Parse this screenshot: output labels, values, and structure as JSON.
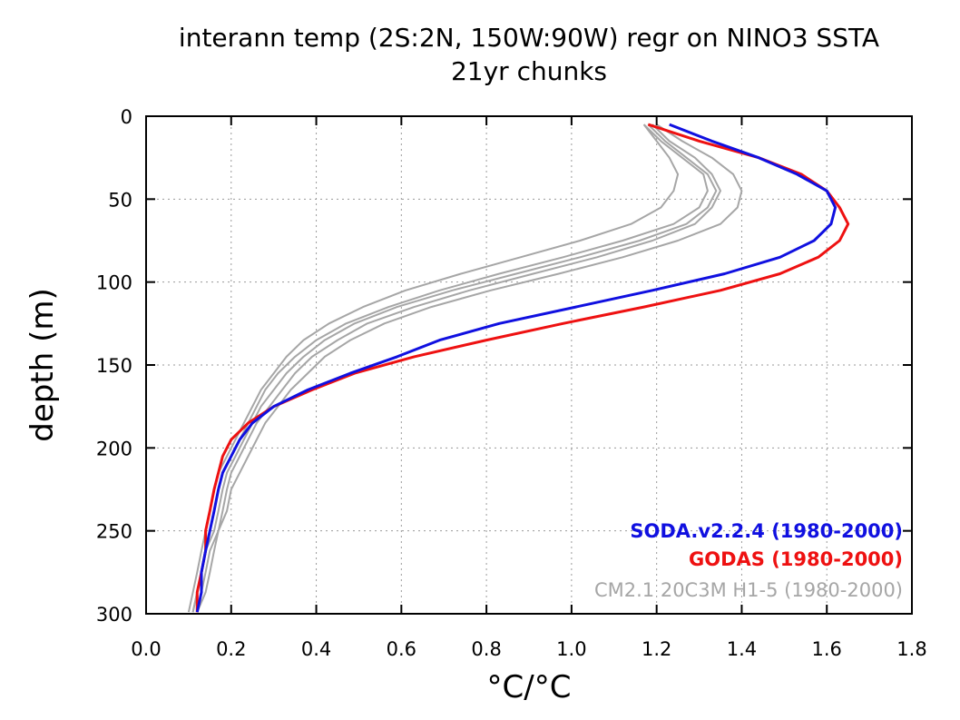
{
  "chart_data": {
    "type": "line",
    "title": "interann temp (2S:2N, 150W:90W) regr on NINO3 SSTA",
    "subtitle": "21yr chunks",
    "xlabel": "°C/°C",
    "ylabel": "depth (m)",
    "xlim": [
      0,
      1.8
    ],
    "ylim": [
      300,
      0
    ],
    "y_inverted": true,
    "grid": true,
    "x_ticks": [
      "0.0",
      "0.2",
      "0.4",
      "0.6",
      "0.8",
      "1.0",
      "1.2",
      "1.4",
      "1.6",
      "1.8"
    ],
    "y_ticks": [
      "0",
      "50",
      "100",
      "150",
      "200",
      "250",
      "300"
    ],
    "legend_position": "bottom-right",
    "legend": [
      {
        "label": "SODA.v2.2.4 (1980-2000)",
        "color": "#1010e0"
      },
      {
        "label": "GODAS (1980-2000)",
        "color": "#ee1111"
      },
      {
        "label": "CM2.1 20C3M H1-5 (1980-2000)",
        "color": "#a6a6a6"
      }
    ],
    "depth": [
      5,
      15,
      25,
      35,
      45,
      55,
      65,
      75,
      85,
      95,
      105,
      115,
      125,
      135,
      145,
      155,
      165,
      175,
      185,
      195,
      205,
      215,
      225,
      238,
      250,
      262,
      275,
      287,
      299
    ],
    "series": [
      {
        "name": "CM2.1 20C3M H1-5 (1980-2000)",
        "color": "#a6a6a6",
        "role": "model",
        "values": [
          1.17,
          1.2,
          1.23,
          1.25,
          1.24,
          1.21,
          1.14,
          1.02,
          0.88,
          0.74,
          0.61,
          0.51,
          0.43,
          0.37,
          0.33,
          0.3,
          0.27,
          0.25,
          0.23,
          0.21,
          0.19,
          0.17,
          0.16,
          0.15,
          0.14,
          0.13,
          0.12,
          0.11,
          0.1
        ]
      },
      {
        "name": "",
        "color": "#a6a6a6",
        "role": "model",
        "values": [
          1.17,
          1.21,
          1.26,
          1.31,
          1.32,
          1.3,
          1.24,
          1.12,
          0.98,
          0.83,
          0.69,
          0.57,
          0.47,
          0.4,
          0.35,
          0.31,
          0.28,
          0.26,
          0.24,
          0.22,
          0.2,
          0.18,
          0.17,
          0.16,
          0.15,
          0.14,
          0.13,
          0.12,
          0.11
        ]
      },
      {
        "name": "",
        "color": "#a6a6a6",
        "role": "model",
        "values": [
          1.18,
          1.22,
          1.27,
          1.32,
          1.34,
          1.32,
          1.27,
          1.16,
          1.02,
          0.87,
          0.72,
          0.59,
          0.49,
          0.42,
          0.37,
          0.33,
          0.3,
          0.27,
          0.25,
          0.23,
          0.21,
          0.19,
          0.18,
          0.17,
          0.16,
          0.14,
          0.13,
          0.12,
          0.11
        ]
      },
      {
        "name": "",
        "color": "#a6a6a6",
        "role": "model",
        "values": [
          1.19,
          1.23,
          1.29,
          1.33,
          1.35,
          1.33,
          1.29,
          1.19,
          1.06,
          0.91,
          0.76,
          0.63,
          0.52,
          0.45,
          0.39,
          0.35,
          0.32,
          0.29,
          0.26,
          0.24,
          0.22,
          0.2,
          0.19,
          0.18,
          0.17,
          0.15,
          0.14,
          0.13,
          0.12
        ]
      },
      {
        "name": "",
        "color": "#a6a6a6",
        "role": "model",
        "values": [
          1.2,
          1.26,
          1.33,
          1.38,
          1.4,
          1.39,
          1.35,
          1.25,
          1.12,
          0.97,
          0.81,
          0.67,
          0.56,
          0.48,
          0.42,
          0.38,
          0.34,
          0.31,
          0.28,
          0.26,
          0.24,
          0.22,
          0.2,
          0.19,
          0.17,
          0.16,
          0.15,
          0.14,
          0.12
        ]
      },
      {
        "name": "GODAS (1980-2000)",
        "color": "#ee1111",
        "role": "obs",
        "values": [
          1.18,
          1.3,
          1.44,
          1.54,
          1.6,
          1.63,
          1.65,
          1.63,
          1.58,
          1.49,
          1.35,
          1.17,
          0.98,
          0.8,
          0.63,
          0.49,
          0.39,
          0.3,
          0.24,
          0.2,
          0.18,
          0.17,
          0.16,
          0.15,
          0.14,
          0.14,
          0.13,
          0.12,
          0.12
        ]
      },
      {
        "name": "SODA.v2.2.4 (1980-2000)",
        "color": "#1010e0",
        "role": "obs",
        "values": [
          1.23,
          1.33,
          1.44,
          1.53,
          1.6,
          1.62,
          1.61,
          1.57,
          1.49,
          1.36,
          1.19,
          1.01,
          0.83,
          0.69,
          0.59,
          0.48,
          0.38,
          0.3,
          0.25,
          0.22,
          0.2,
          0.18,
          0.17,
          0.16,
          0.15,
          0.14,
          0.13,
          0.13,
          0.12
        ]
      }
    ]
  }
}
